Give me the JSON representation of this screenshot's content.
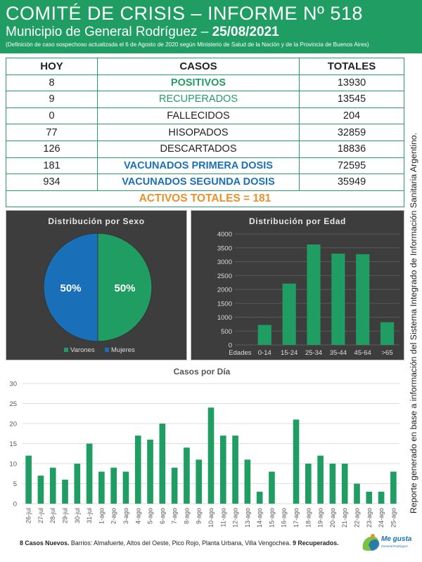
{
  "header": {
    "title": "COMITÉ DE CRISIS – INFORME Nº 518",
    "subtitle_prefix": "Municipio de General Rodríguez – ",
    "subtitle_date": "25/08/2021",
    "note": "(Definición de caso sospechoso actualizada el 6 de Agosto de 2020 según Ministerio de Salud de la Nación y de la Provincia de Buenos Aires)"
  },
  "table": {
    "headers": [
      "HOY",
      "CASOS",
      "TOTALES"
    ],
    "rows": [
      {
        "hoy": "8",
        "casos": "POSITIVOS",
        "totales": "13930"
      },
      {
        "hoy": "9",
        "casos": "RECUPERADOS",
        "totales": "13545"
      },
      {
        "hoy": "0",
        "casos": "FALLECIDOS",
        "totales": "204"
      },
      {
        "hoy": "77",
        "casos": "HISOPADOS",
        "totales": "32859"
      },
      {
        "hoy": "126",
        "casos": "DESCARTADOS",
        "totales": "18836"
      },
      {
        "hoy": "181",
        "casos": "VACUNADOS PRIMERA DOSIS",
        "totales": "72595"
      },
      {
        "hoy": "934",
        "casos": "VACUNADOS SEGUNDA DOSIS",
        "totales": "35949"
      }
    ],
    "activos": "ACTIVOS TOTALES = 181"
  },
  "side_text": "Reporte generado en base a información del Sistema Integrado de Información Sanitaria Argentino.",
  "footer": {
    "new_cases": "8 Casos Nuevos.",
    "barrios": " Barrios: Almafuerte, Altos del Oeste, Pico Rojo, Planta Urbana, Villa Vengochea. ",
    "recovered": "9 Recuperados."
  },
  "logo": {
    "text": "Me gusta",
    "sub": "General Rodríguez"
  },
  "colors": {
    "green": "#1f9d63",
    "blue": "#1a70b8",
    "orange": "#e8912b",
    "panel": "#3d3d3d"
  },
  "chart_data": [
    {
      "type": "pie",
      "title": "Distribución por Sexo",
      "categories": [
        "Varones",
        "Mujeres"
      ],
      "values": [
        50,
        50
      ],
      "labels": [
        "50%",
        "50%"
      ],
      "colors": [
        "#1f9d63",
        "#1a70b8"
      ],
      "legend": "bottom"
    },
    {
      "type": "bar",
      "title": "Distribución por Edad",
      "categories": [
        "Edades",
        "0-14",
        "15-24",
        "25-34",
        "35-44",
        "45-64",
        ">65"
      ],
      "values": [
        null,
        720,
        2210,
        3620,
        3290,
        3270,
        820
      ],
      "ylim": [
        0,
        4000
      ],
      "yticks": [
        "0",
        "500",
        "1000",
        "1500",
        "2000",
        "2500",
        "3000",
        "3500",
        "4000"
      ],
      "grid": true
    },
    {
      "type": "bar",
      "title": "Casos por Día",
      "categories": [
        "26-jul",
        "27-jul",
        "28-jul",
        "29-jul",
        "30-jul",
        "31-jul",
        "1-ago",
        "2-ago",
        "3-ago",
        "4-ago",
        "5-ago",
        "6-ago",
        "7-ago",
        "8-ago",
        "9-ago",
        "10-ago",
        "11-ago",
        "12-ago",
        "13-ago",
        "14-ago",
        "15-ago",
        "16-ago",
        "17-ago",
        "18-ago",
        "19-ago",
        "20-ago",
        "21-ago",
        "22-ago",
        "23-ago",
        "24-ago",
        "25-ago"
      ],
      "values": [
        12,
        7,
        9,
        6,
        10,
        15,
        8,
        9,
        8,
        17,
        16,
        20,
        9,
        14,
        11,
        24,
        17,
        17,
        11,
        3,
        8,
        0,
        21,
        10,
        12,
        10,
        10,
        5,
        3,
        3,
        8
      ],
      "ylim": [
        0,
        30
      ],
      "yticks": [
        "0",
        "5",
        "10",
        "15",
        "20",
        "25",
        "30"
      ],
      "grid": true
    }
  ]
}
